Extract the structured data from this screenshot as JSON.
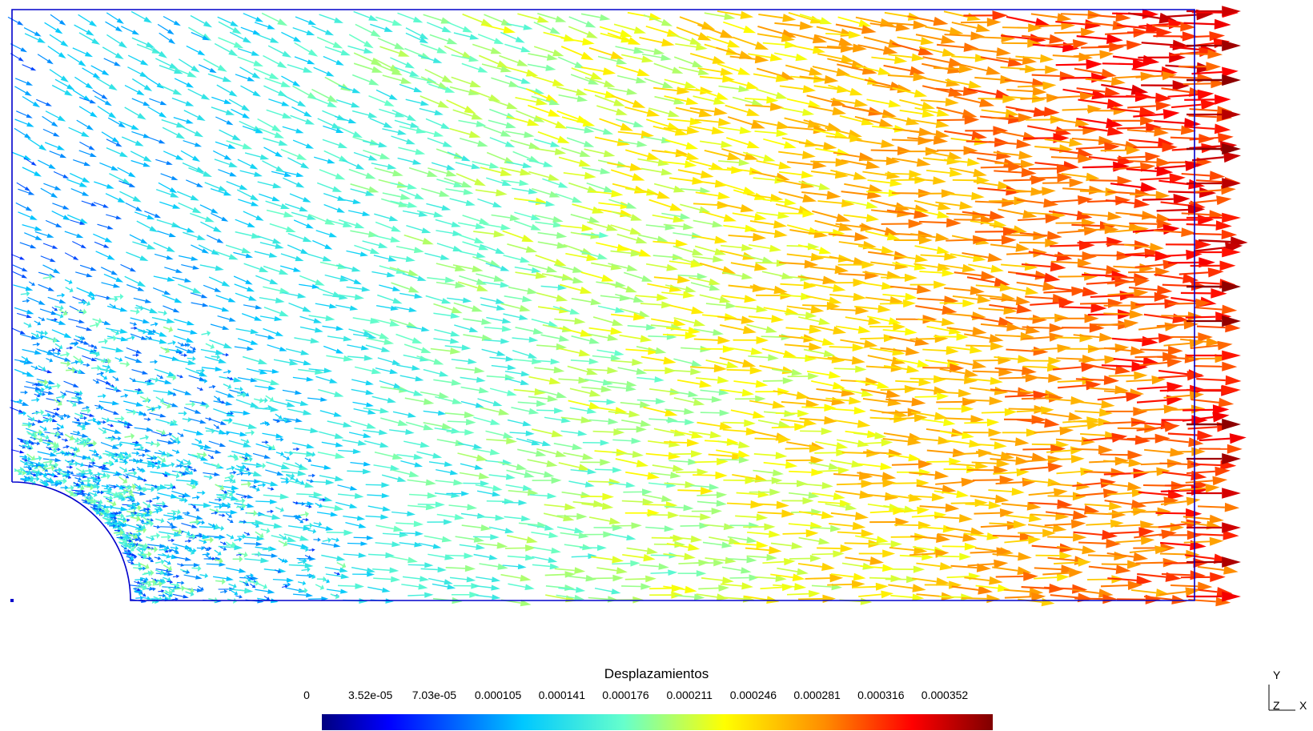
{
  "field": {
    "name": "Desplazamientos",
    "colormap": [
      "#00007f",
      "#0000ff",
      "#00c8ff",
      "#66ffcc",
      "#ffff00",
      "#ff8c00",
      "#ff0000",
      "#7f0000"
    ],
    "domain_outline_color": "#0000cc",
    "range": [
      0,
      0.000352
    ]
  },
  "legend": {
    "title": "Desplazamientos",
    "ticks": [
      "0",
      "3.52e-05",
      "7.03e-05",
      "0.000105",
      "0.000141",
      "0.000176",
      "0.000211",
      "0.000246",
      "0.000281",
      "0.000316",
      "0.000352"
    ]
  },
  "axes": {
    "y_label": "Y",
    "z_label": "Z",
    "x_label": "X"
  }
}
